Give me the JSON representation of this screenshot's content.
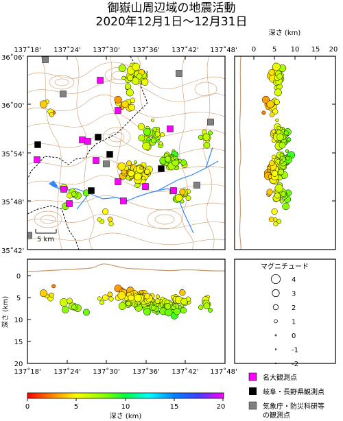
{
  "title_line1": "御嶽山周辺域の地震活動",
  "title_line2": "2020年12月1日〜12月31日",
  "map": {
    "lat_ticks": [
      "36˚06'",
      "36˚00'",
      "35˚54'",
      "35˚48'",
      "35˚42'"
    ],
    "lon_ticks": [
      "137˚18'",
      "137˚24'",
      "137˚30'",
      "137˚36'",
      "137˚42'",
      "137˚48'"
    ],
    "scale_label": "5 km"
  },
  "depth_panel": {
    "axis_label": "深さ (km)",
    "ticks": [
      "0",
      "5",
      "10",
      "15",
      "20"
    ]
  },
  "cross_section": {
    "axis_label": "深さ (km)",
    "depth_ticks": [
      "0",
      "5",
      "10",
      "15",
      "20"
    ],
    "lon_ticks": [
      "137˚18'",
      "137˚24'",
      "137˚30'",
      "137˚36'",
      "137˚42'",
      "137˚48'"
    ]
  },
  "magnitude_legend": {
    "title": "マグニチュード",
    "items": [
      {
        "label": "4",
        "m": 4
      },
      {
        "label": "3",
        "m": 3
      },
      {
        "label": "2",
        "m": 2
      },
      {
        "label": "1",
        "m": 1
      },
      {
        "label": "0",
        "m": 0
      },
      {
        "label": "-1",
        "m": -1
      },
      {
        "label": "-2",
        "m": -2
      }
    ]
  },
  "station_legend": [
    {
      "label": "名大観測点",
      "color": "#ff00ff"
    },
    {
      "label": "岐阜・長野県観測点",
      "color": "#000000"
    },
    {
      "label": "気象庁・防災科研等",
      "label2": "の観測点",
      "color": "#808080"
    }
  ],
  "colorbar": {
    "ticks": [
      "0",
      "5",
      "10",
      "15",
      "20"
    ],
    "label": "深さ (km)"
  },
  "colors": {
    "river": "#3388ff",
    "topo": "#c8996a",
    "border": "#000000"
  }
}
